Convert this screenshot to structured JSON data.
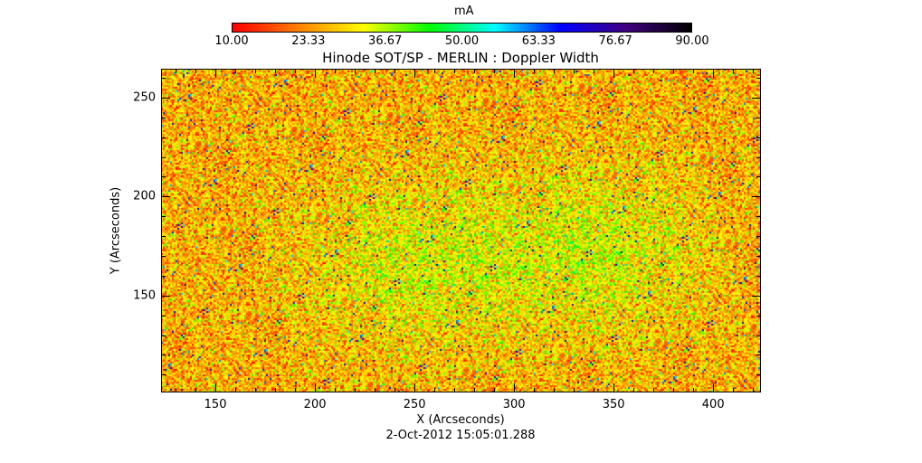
{
  "chart_data": {
    "type": "heatmap",
    "title": "Hinode SOT/SP - MERLIN : Doppler Width",
    "xlabel": "X (Arcseconds)",
    "ylabel": "Y (Arcseconds)",
    "footer": "2-Oct-2012 15:05:01.288",
    "xlim": [
      122.7,
      424
    ],
    "ylim": [
      101,
      264.6
    ],
    "x_ticks": [
      "150",
      "200",
      "250",
      "300",
      "350",
      "400"
    ],
    "x_tick_values": [
      150,
      200,
      250,
      300,
      350,
      400
    ],
    "y_ticks": [
      "150",
      "200",
      "250"
    ],
    "y_tick_values": [
      150,
      200,
      250
    ],
    "colorbar": {
      "unit": "mA",
      "range": [
        10,
        90
      ],
      "tick_labels": [
        "10.00",
        "23.33",
        "36.67",
        "50.00",
        "63.33",
        "76.67",
        "90.00"
      ],
      "colormap": [
        "#ff0000",
        "#ff8000",
        "#ffff00",
        "#00ff00",
        "#00ffff",
        "#0000ff",
        "#400080",
        "#000000"
      ]
    },
    "values_description_mean": 30
  }
}
